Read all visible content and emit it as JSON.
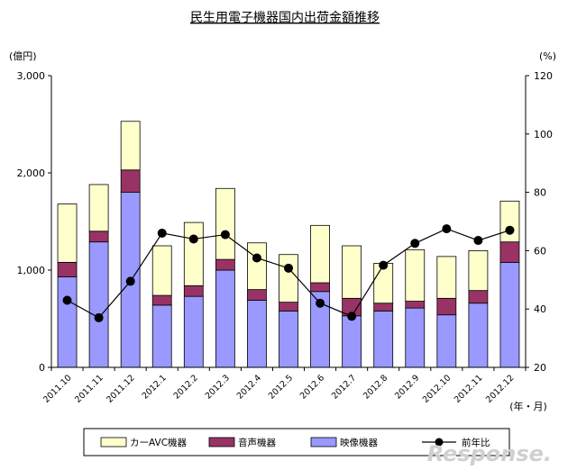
{
  "chart_data": {
    "type": "bar",
    "stacked": true,
    "title": "民生用電子機器国内出荷金額推移",
    "ylabel_left": "(億円)",
    "ylabel_right": "(%)",
    "xlabel": "(年・月)",
    "left_ylim": [
      0,
      3000
    ],
    "left_yticks": [
      "0",
      "1,000",
      "2,000",
      "3,000"
    ],
    "right_ylim": [
      20,
      120
    ],
    "right_yticks": [
      "20",
      "40",
      "60",
      "80",
      "100",
      "120"
    ],
    "categories": [
      "2011.10",
      "2011.11",
      "2011.12",
      "2012.1",
      "2012.2",
      "2012.3",
      "2012.4",
      "2012.5",
      "2012.6",
      "2012.7",
      "2012.8",
      "2012.9",
      "2012.10",
      "2012.11",
      "2012.12"
    ],
    "series": [
      {
        "name": "映像機器",
        "axis": "left",
        "color": "#9999ff",
        "values": [
          930,
          1290,
          1800,
          640,
          730,
          1000,
          690,
          580,
          780,
          530,
          580,
          610,
          540,
          660,
          1080
        ]
      },
      {
        "name": "音声機器",
        "axis": "left",
        "color": "#993366",
        "values": [
          150,
          110,
          230,
          100,
          110,
          110,
          110,
          90,
          90,
          180,
          80,
          70,
          170,
          130,
          210
        ]
      },
      {
        "name": "カーAVC機器",
        "axis": "left",
        "color": "#ffffcc",
        "values": [
          600,
          480,
          500,
          510,
          650,
          730,
          480,
          490,
          590,
          540,
          410,
          530,
          430,
          410,
          420
        ]
      },
      {
        "name": "前年比",
        "axis": "right",
        "type": "line",
        "color": "#000000",
        "values": [
          43,
          37,
          49.5,
          66,
          64,
          65.5,
          57.5,
          54,
          42,
          37.5,
          55,
          62.5,
          67.5,
          63.5,
          67
        ]
      }
    ],
    "legend_position": "bottom",
    "grid": false
  },
  "watermark": "Response."
}
